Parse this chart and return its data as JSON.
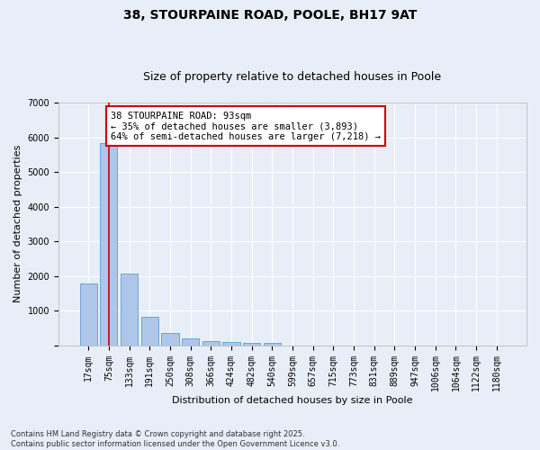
{
  "title1": "38, STOURPAINE ROAD, POOLE, BH17 9AT",
  "title2": "Size of property relative to detached houses in Poole",
  "xlabel": "Distribution of detached houses by size in Poole",
  "ylabel": "Number of detached properties",
  "categories": [
    "17sqm",
    "75sqm",
    "133sqm",
    "191sqm",
    "250sqm",
    "308sqm",
    "366sqm",
    "424sqm",
    "482sqm",
    "540sqm",
    "599sqm",
    "657sqm",
    "715sqm",
    "773sqm",
    "831sqm",
    "889sqm",
    "947sqm",
    "1006sqm",
    "1064sqm",
    "1122sqm",
    "1180sqm"
  ],
  "values": [
    1780,
    5820,
    2070,
    820,
    350,
    190,
    110,
    90,
    80,
    60,
    0,
    0,
    0,
    0,
    0,
    0,
    0,
    0,
    0,
    0,
    0
  ],
  "bar_color": "#aec6e8",
  "bar_edge_color": "#5a9fd4",
  "vline_x": 1,
  "vline_color": "#cc0000",
  "annotation_line1": "38 STOURPAINE ROAD: 93sqm",
  "annotation_line2": "← 35% of detached houses are smaller (3,893)",
  "annotation_line3": "64% of semi-detached houses are larger (7,218) →",
  "annotation_box_color": "#cc0000",
  "annotation_bg": "#ffffff",
  "ylim": [
    0,
    7000
  ],
  "yticks": [
    0,
    1000,
    2000,
    3000,
    4000,
    5000,
    6000,
    7000
  ],
  "background_color": "#e8eef7",
  "grid_color": "#ffffff",
  "footer1": "Contains HM Land Registry data © Crown copyright and database right 2025.",
  "footer2": "Contains public sector information licensed under the Open Government Licence v3.0.",
  "title_fontsize": 10,
  "subtitle_fontsize": 9,
  "axis_label_fontsize": 8,
  "tick_fontsize": 7,
  "annotation_fontsize": 7.5,
  "footer_fontsize": 6
}
